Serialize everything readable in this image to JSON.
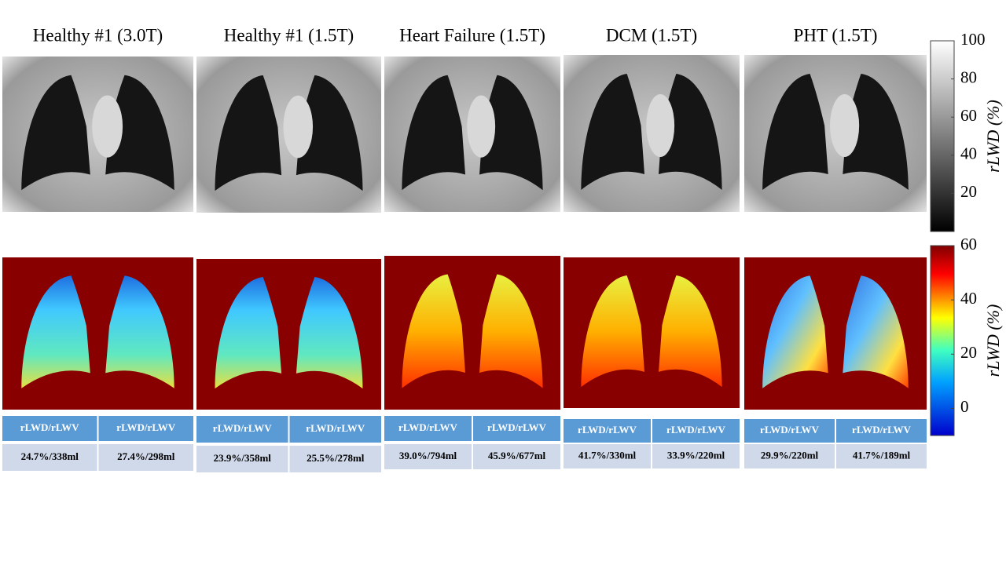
{
  "panels": [
    {
      "title": "Healthy #1 (3.0T)",
      "table": {
        "header": [
          "rLWD/rLWV",
          "rLWD/rLWV"
        ],
        "values": [
          "24.7%/338ml",
          "27.4%/298ml"
        ]
      }
    },
    {
      "title": "Healthy #1 (1.5T)",
      "table": {
        "header": [
          "rLWD/rLWV",
          "rLWD/rLWV"
        ],
        "values": [
          "23.9%/358ml",
          "25.5%/278ml"
        ]
      }
    },
    {
      "title": "Heart Failure (1.5T)",
      "table": {
        "header": [
          "rLWD/rLWV",
          "rLWD/rLWV"
        ],
        "values": [
          "39.0%/794ml",
          "45.9%/677ml"
        ]
      }
    },
    {
      "title": "DCM (1.5T)",
      "table": {
        "header": [
          "rLWD/rLWV",
          "rLWD/rLWV"
        ],
        "values": [
          "41.7%/330ml",
          "33.9%/220ml"
        ]
      }
    },
    {
      "title": "PHT (1.5T)",
      "table": {
        "header": [
          "rLWD/rLWV",
          "rLWD/rLWV"
        ],
        "values": [
          "29.9%/220ml",
          "41.7%/189ml"
        ]
      }
    }
  ],
  "colorbars": [
    {
      "label": "rLWD (%)",
      "lim": [
        0,
        100
      ],
      "ticks": [
        20,
        40,
        60,
        80,
        100
      ]
    },
    {
      "label": "rLWD (%)",
      "lim": [
        -10,
        60
      ],
      "ticks": [
        0,
        20,
        40,
        60
      ]
    }
  ]
}
